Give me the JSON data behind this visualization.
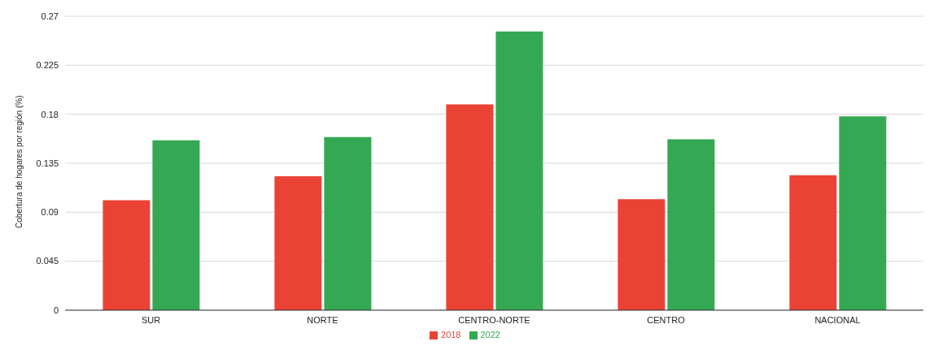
{
  "chart_data": {
    "type": "bar",
    "ylabel": "Cobertura de hogares por región (%)",
    "categories": [
      "SUR",
      "NORTE",
      "CENTRO-NORTE",
      "CENTRO",
      "NACIONAL"
    ],
    "series": [
      {
        "name": "2018",
        "color": "#ea4335",
        "values": [
          0.101,
          0.123,
          0.189,
          0.102,
          0.124
        ]
      },
      {
        "name": "2022",
        "color": "#34a853",
        "values": [
          0.156,
          0.159,
          0.256,
          0.157,
          0.178
        ]
      }
    ],
    "ylim": [
      0,
      0.27
    ],
    "yticks": [
      0,
      0.045,
      0.09,
      0.135,
      0.18,
      0.225,
      0.27
    ],
    "grid": "y",
    "legend": "bottom"
  }
}
